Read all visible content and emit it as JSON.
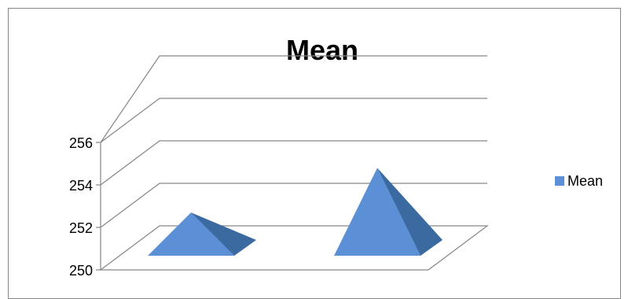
{
  "chart_data": {
    "type": "bar",
    "style": "3d-pyramid",
    "title": "Mean",
    "categories": [
      "",
      ""
    ],
    "series": [
      {
        "name": "Mean",
        "values": [
          252.7,
          254.8
        ]
      }
    ],
    "ylim": [
      250,
      256
    ],
    "yticks": [
      "250",
      "252",
      "254",
      "256"
    ],
    "legend_position": "right",
    "grid": true,
    "colors": {
      "front": "#5b8fd6",
      "side": "#3b6aa0",
      "wall": "#868686"
    }
  }
}
